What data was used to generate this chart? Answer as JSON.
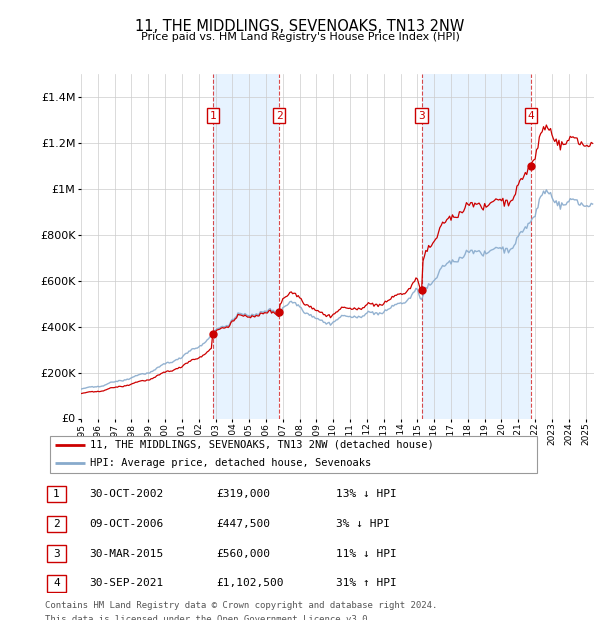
{
  "title": "11, THE MIDDLINGS, SEVENOAKS, TN13 2NW",
  "subtitle": "Price paid vs. HM Land Registry's House Price Index (HPI)",
  "footer1": "Contains HM Land Registry data © Crown copyright and database right 2024.",
  "footer2": "This data is licensed under the Open Government Licence v3.0.",
  "legend1": "11, THE MIDDLINGS, SEVENOAKS, TN13 2NW (detached house)",
  "legend2": "HPI: Average price, detached house, Sevenoaks",
  "price_color": "#cc0000",
  "hpi_color": "#88aacc",
  "background_color": "#ffffff",
  "plot_bg": "#ffffff",
  "grid_color": "#cccccc",
  "ylim": [
    0,
    1500000
  ],
  "yticks": [
    0,
    200000,
    400000,
    600000,
    800000,
    1000000,
    1200000,
    1400000
  ],
  "xlim_start": 1995.0,
  "xlim_end": 2025.5,
  "shade_color": "#ddeeff",
  "purchases": [
    {
      "num": 1,
      "year": 2002.83,
      "price": 319000,
      "date": "30-OCT-2002",
      "pct": "13%",
      "dir": "↓"
    },
    {
      "num": 2,
      "year": 2006.78,
      "price": 447500,
      "date": "09-OCT-2006",
      "pct": "3%",
      "dir": "↓"
    },
    {
      "num": 3,
      "year": 2015.25,
      "price": 560000,
      "date": "30-MAR-2015",
      "pct": "11%",
      "dir": "↓"
    },
    {
      "num": 4,
      "year": 2021.75,
      "price": 1102500,
      "date": "30-SEP-2021",
      "pct": "31%",
      "dir": "↑"
    }
  ]
}
